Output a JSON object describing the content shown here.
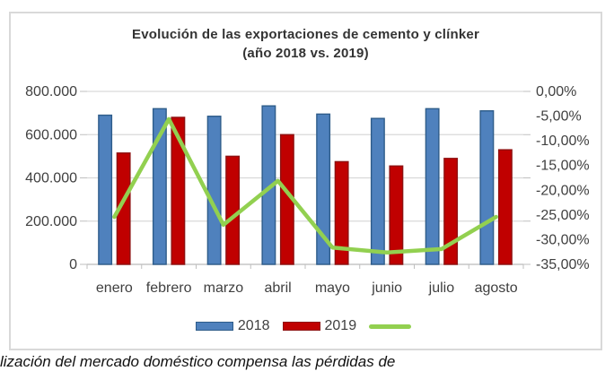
{
  "title": {
    "line1": "Evolución de las exportaciones de cemento y clínker",
    "line2": "(año 2018 vs. 2019)"
  },
  "legend": {
    "item_2018": "2018",
    "item_2019": "2019",
    "item_line": ""
  },
  "caption_fragment": "lización del mercado doméstico compensa las pérdidas de",
  "colors": {
    "bar_2018_fill": "#4F81BD",
    "bar_2018_border": "#2E5C8A",
    "bar_2019_fill": "#C00000",
    "bar_2019_border": "#8E1111",
    "trend_line": "#92D050",
    "gridline": "#D9D9D9",
    "axis_line": "#BFBFBF",
    "axis_text": "#404040",
    "frame_border": "#D9D9D9"
  },
  "chart_data": {
    "type": "bar",
    "subtype": "combo-bar-line",
    "title": "Evolución de las exportaciones de cemento y clínker (año 2018 vs. 2019)",
    "categories": [
      "enero",
      "febrero",
      "marzo",
      "abril",
      "mayo",
      "junio",
      "julio",
      "agosto"
    ],
    "series": [
      {
        "name": "2018",
        "chart_type": "bar",
        "axis": "left",
        "color": "#4F81BD",
        "border_color": "#2E5C8A",
        "values": [
          690000,
          720000,
          685000,
          733000,
          695000,
          675000,
          720000,
          710000
        ]
      },
      {
        "name": "2019",
        "chart_type": "bar",
        "axis": "left",
        "color": "#C00000",
        "border_color": "#8E1111",
        "values": [
          515000,
          680000,
          500000,
          600000,
          475000,
          455000,
          490000,
          530000
        ]
      },
      {
        "name": "",
        "chart_type": "line",
        "axis": "right",
        "color": "#92D050",
        "values": [
          -25.4,
          -5.6,
          -27.0,
          -18.1,
          -31.6,
          -32.6,
          -31.9,
          -25.4
        ]
      }
    ],
    "left_axis": {
      "min": 0,
      "max": 800000,
      "tick_values": [
        800000,
        600000,
        400000,
        200000,
        0
      ],
      "tick_labels": [
        "800.000",
        "600.000",
        "400.000",
        "200.000",
        "0"
      ]
    },
    "right_axis": {
      "min": -35,
      "max": 0,
      "tick_values": [
        0,
        -5,
        -10,
        -15,
        -20,
        -25,
        -30,
        -35
      ],
      "tick_labels": [
        "0,00%",
        "-5,00%",
        "-10,00%",
        "-15,00%",
        "-20,00%",
        "-25,00%",
        "-30,00%",
        "-35,00%"
      ]
    },
    "grid": true,
    "legend_position": "bottom"
  }
}
